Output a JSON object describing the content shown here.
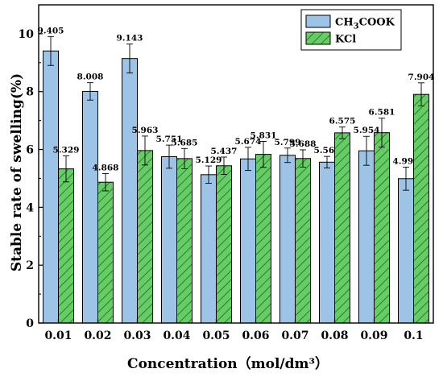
{
  "chart_data": {
    "type": "bar",
    "xlabel": "Concentration（mol/dm³）",
    "ylabel": "Stable rate of swelling(%)",
    "ylim": [
      0,
      11
    ],
    "yticks": [
      0,
      2,
      4,
      6,
      8,
      10
    ],
    "categories": [
      "0.01",
      "0.02",
      "0.03",
      "0.04",
      "0.05",
      "0.06",
      "0.07",
      "0.08",
      "0.09",
      "0.1"
    ],
    "series": [
      {
        "name": "CH3COOK",
        "name_base": "CH",
        "name_sub": "3",
        "name_rest": "COOK",
        "color": "#9DC3E6",
        "pattern": "solid",
        "values": [
          9.405,
          8.008,
          9.143,
          5.751,
          5.129,
          5.674,
          5.799,
          5.561,
          5.954,
          4.991
        ],
        "labels": [
          "9.405",
          "8.008",
          "9.143",
          "5.751",
          "5.129",
          "5.674",
          "5.799",
          "5.561",
          "5.954",
          "4.991"
        ],
        "errors": [
          0.5,
          0.3,
          0.5,
          0.4,
          0.3,
          0.4,
          0.25,
          0.2,
          0.5,
          0.4
        ]
      },
      {
        "name": "KCl",
        "color": "#66CC66",
        "pattern": "hatch",
        "values": [
          5.329,
          4.868,
          5.963,
          5.685,
          5.437,
          5.831,
          5.688,
          6.575,
          6.581,
          7.904
        ],
        "labels": [
          "5.329",
          "4.868",
          "5.963",
          "5.685",
          "5.437",
          "5.831",
          "5.688",
          "6.575",
          "6.581",
          "7.904"
        ],
        "errors": [
          0.45,
          0.3,
          0.5,
          0.35,
          0.3,
          0.45,
          0.3,
          0.2,
          0.5,
          0.4
        ]
      }
    ],
    "legend": "top-right",
    "grid": false
  }
}
